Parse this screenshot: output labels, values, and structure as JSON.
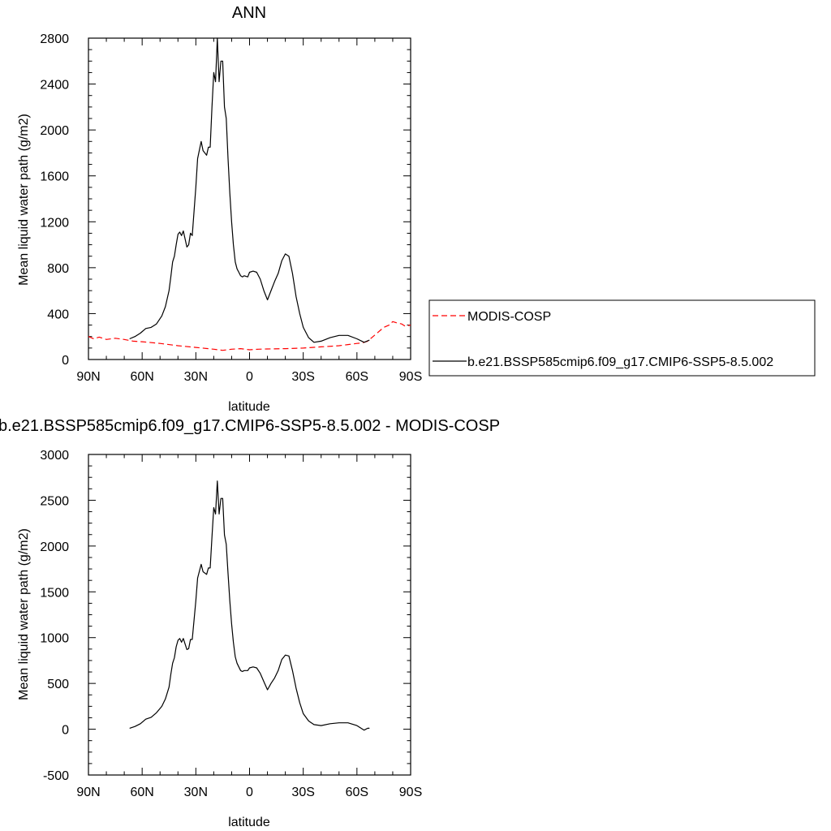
{
  "chart_data": [
    {
      "type": "line",
      "title": "ANN",
      "xlabel": "latitude",
      "ylabel": "Mean liquid water path (g/m2)",
      "xlim": [
        90,
        -90
      ],
      "ylim": [
        0,
        2800
      ],
      "xticks": [
        90,
        60,
        30,
        0,
        -30,
        -60,
        -90
      ],
      "xtick_labels": [
        "90N",
        "60N",
        "30N",
        "0",
        "30S",
        "60S",
        "90S"
      ],
      "yticks": [
        0,
        400,
        800,
        1200,
        1600,
        2000,
        2400,
        2800
      ],
      "ytick_labels": [
        "0",
        "400",
        "800",
        "1200",
        "1600",
        "2000",
        "2400",
        "2800"
      ],
      "grid": false,
      "legend": "right",
      "series": [
        {
          "name": "MODIS-COSP",
          "color": "#ff0000",
          "dash": "dashed",
          "x": [
            90,
            87,
            84,
            80,
            75,
            70,
            65,
            60,
            50,
            40,
            30,
            20,
            15,
            10,
            5,
            0,
            -5,
            -10,
            -20,
            -30,
            -40,
            -50,
            -55,
            -60,
            -63,
            -66,
            -69,
            -72,
            -75,
            -78,
            -80,
            -82,
            -85,
            -87,
            -90
          ],
          "y": [
            200,
            180,
            195,
            175,
            185,
            175,
            160,
            155,
            140,
            120,
            105,
            90,
            80,
            90,
            95,
            85,
            90,
            92,
            95,
            100,
            110,
            120,
            130,
            140,
            145,
            160,
            200,
            240,
            280,
            300,
            330,
            320,
            310,
            290,
            300
          ]
        },
        {
          "name": "b.e21.BSSP585cmip6.f09_g17.CMIP6-SSP5-8.5.002",
          "color": "#000000",
          "dash": "solid",
          "x": [
            67,
            64,
            61,
            58,
            55,
            52,
            49,
            47,
            45,
            44,
            43,
            42,
            41,
            40,
            39,
            38,
            37,
            35,
            34,
            33,
            32,
            30,
            29,
            27,
            26,
            24,
            23,
            22,
            21,
            20,
            19,
            18,
            17,
            16,
            15,
            14,
            13,
            12,
            11,
            10,
            9,
            8,
            7,
            6,
            5,
            4,
            3,
            1,
            0,
            -2,
            -4,
            -6,
            -8,
            -10,
            -12,
            -14,
            -16,
            -18,
            -20,
            -22,
            -24,
            -26,
            -28,
            -30,
            -33,
            -36,
            -40,
            -45,
            -50,
            -55,
            -60,
            -64,
            -67
          ],
          "y": [
            180,
            200,
            230,
            270,
            280,
            310,
            380,
            460,
            600,
            720,
            850,
            900,
            1000,
            1090,
            1110,
            1080,
            1120,
            980,
            1000,
            1100,
            1080,
            1500,
            1750,
            1900,
            1820,
            1780,
            1850,
            1850,
            2200,
            2500,
            2420,
            2800,
            2420,
            2600,
            2600,
            2200,
            2100,
            1750,
            1450,
            1200,
            1000,
            850,
            790,
            760,
            730,
            720,
            730,
            720,
            760,
            770,
            760,
            700,
            600,
            520,
            600,
            680,
            750,
            860,
            920,
            900,
            750,
            550,
            400,
            280,
            190,
            150,
            160,
            190,
            210,
            210,
            180,
            150,
            170
          ]
        }
      ]
    },
    {
      "type": "line",
      "title": "b.e21.BSSP585cmip6.f09_g17.CMIP6-SSP5-8.5.002 - MODIS-COSP",
      "xlabel": "latitude",
      "ylabel": "Mean liquid water path (g/m2)",
      "xlim": [
        90,
        -90
      ],
      "ylim": [
        -500,
        3000
      ],
      "xticks": [
        90,
        60,
        30,
        0,
        -30,
        -60,
        -90
      ],
      "xtick_labels": [
        "90N",
        "60N",
        "30N",
        "0",
        "30S",
        "60S",
        "90S"
      ],
      "yticks": [
        -500,
        0,
        500,
        1000,
        1500,
        2000,
        2500,
        3000
      ],
      "ytick_labels": [
        "-500",
        "0",
        "500",
        "1000",
        "1500",
        "2000",
        "2500",
        "3000"
      ],
      "grid": false,
      "series": [
        {
          "color": "#000000",
          "dash": "solid",
          "x": [
            67,
            64,
            61,
            58,
            55,
            52,
            49,
            47,
            45,
            44,
            43,
            42,
            41,
            40,
            39,
            38,
            37,
            35,
            34,
            33,
            32,
            30,
            29,
            27,
            26,
            24,
            23,
            22,
            21,
            20,
            19,
            18,
            17,
            16,
            15,
            14,
            13,
            12,
            11,
            10,
            9,
            8,
            7,
            6,
            5,
            4,
            3,
            1,
            0,
            -2,
            -4,
            -6,
            -8,
            -10,
            -12,
            -14,
            -16,
            -18,
            -20,
            -22,
            -24,
            -26,
            -28,
            -30,
            -33,
            -36,
            -40,
            -45,
            -50,
            -55,
            -60,
            -64,
            -66,
            -67
          ],
          "y": [
            10,
            30,
            60,
            110,
            130,
            180,
            250,
            330,
            460,
            600,
            720,
            780,
            900,
            970,
            990,
            950,
            990,
            870,
            880,
            980,
            980,
            1400,
            1650,
            1800,
            1720,
            1690,
            1760,
            1760,
            2100,
            2420,
            2350,
            2710,
            2350,
            2520,
            2520,
            2120,
            2020,
            1700,
            1400,
            1150,
            950,
            790,
            720,
            680,
            640,
            630,
            640,
            640,
            670,
            680,
            670,
            610,
            520,
            430,
            500,
            560,
            640,
            760,
            810,
            800,
            640,
            450,
            290,
            170,
            90,
            50,
            40,
            60,
            70,
            70,
            40,
            -10,
            10,
            10
          ]
        }
      ]
    }
  ]
}
